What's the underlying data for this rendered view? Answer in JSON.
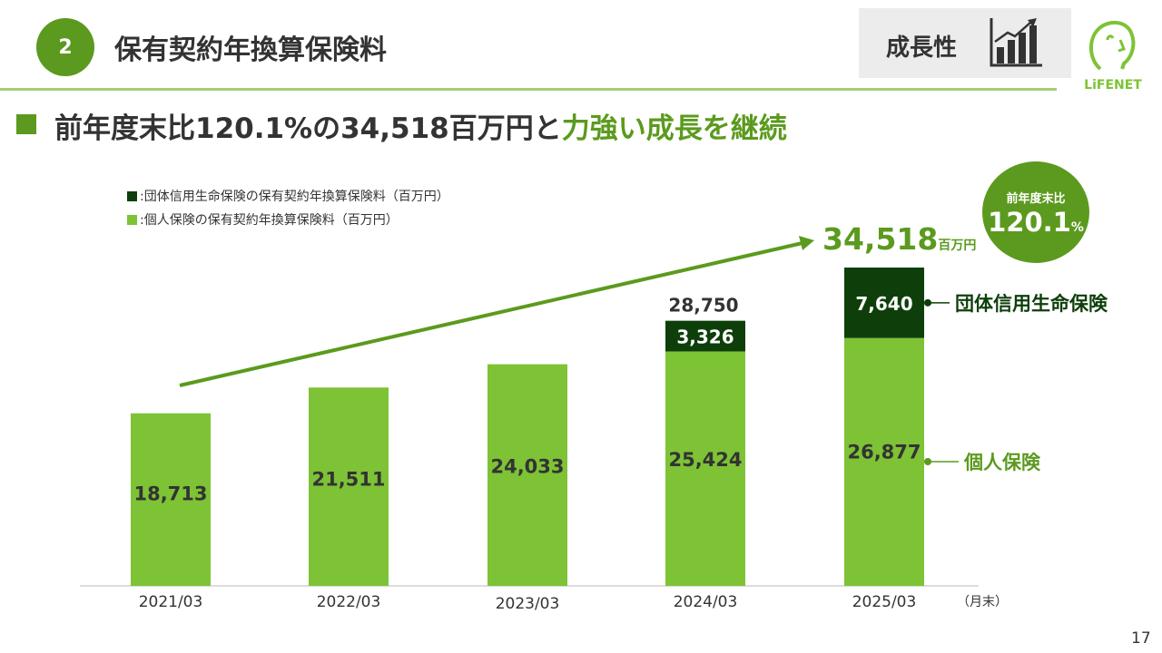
{
  "header": {
    "section_number": "2",
    "title": "保有契約年換算保険料",
    "tag_label": "成長性",
    "logo_text": "LiFENET"
  },
  "headline": {
    "prefix": "前年度末比120.1%の34,518百万円と",
    "emphasis": "力強い成長を継続"
  },
  "legend": [
    {
      "label": ":団体信用生命保険の保有契約年換算保険料（百万円）",
      "color": "#0e3f0b"
    },
    {
      "label": ":個人保険の保有契約年換算保険料（百万円）",
      "color": "#7dc335"
    }
  ],
  "badge": {
    "top": "前年度末比",
    "value": "120.1",
    "unit": "%"
  },
  "total_callout": {
    "value": "34,518",
    "unit": "百万円"
  },
  "x_unit_label": "（月末）",
  "page_number": "17",
  "colors": {
    "brand_green": "#5b9a1e",
    "bar_individual": "#7dc335",
    "bar_group": "#0e3f0b",
    "trend_arrow": "#5b9a1e"
  },
  "chart_data": {
    "type": "bar",
    "stacked": true,
    "categories": [
      "2021/03",
      "2022/03",
      "2023/03",
      "2024/03",
      "2025/03"
    ],
    "series": [
      {
        "name": "個人保険",
        "values": [
          18713,
          21511,
          24033,
          25424,
          26877
        ],
        "labels": [
          "18,713",
          "21,511",
          "24,033",
          "25,424",
          "26,877"
        ]
      },
      {
        "name": "団体信用生命保険",
        "values": [
          0,
          0,
          0,
          3326,
          7640
        ],
        "labels": [
          "",
          "",
          "",
          "3,326",
          "7,640"
        ]
      }
    ],
    "totals": [
      null,
      null,
      null,
      28750,
      34518
    ],
    "total_labels": [
      "",
      "",
      "",
      "28,750",
      ""
    ],
    "ylim": [
      0,
      36000
    ],
    "grid": false
  }
}
